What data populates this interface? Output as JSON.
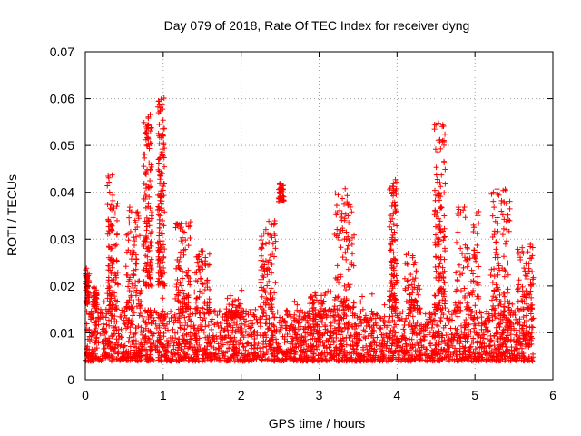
{
  "chart_data": {
    "type": "scatter",
    "title": "Day 079 of 2018, Rate Of TEC Index for receiver dyng",
    "xlabel": "GPS time / hours",
    "ylabel": "ROTI / TECUs",
    "xlim": [
      0,
      6
    ],
    "ylim": [
      0,
      0.07
    ],
    "xticks": [
      "0",
      "1",
      "2",
      "3",
      "4",
      "5",
      "6"
    ],
    "yticks": [
      "0",
      "0.01",
      "0.02",
      "0.03",
      "0.04",
      "0.05",
      "0.06",
      "0.07"
    ],
    "grid": true,
    "marker": "+",
    "series": [
      {
        "name": "ROTI",
        "color": "#ff0000",
        "x_range": [
          0,
          5.75
        ],
        "baseline_band": [
          0.004,
          0.015
        ],
        "bursts": [
          {
            "x": [
              0.0,
              0.05
            ],
            "y": [
              0.016,
              0.024
            ]
          },
          {
            "x": [
              0.1,
              0.15
            ],
            "y": [
              0.015,
              0.02
            ]
          },
          {
            "x": [
              0.28,
              0.42
            ],
            "y": [
              0.015,
              0.044
            ]
          },
          {
            "x": [
              0.52,
              0.72
            ],
            "y": [
              0.015,
              0.037
            ]
          },
          {
            "x": [
              0.75,
              0.85
            ],
            "y": [
              0.02,
              0.057
            ]
          },
          {
            "x": [
              0.93,
              1.02
            ],
            "y": [
              0.02,
              0.062
            ]
          },
          {
            "x": [
              1.15,
              1.35
            ],
            "y": [
              0.015,
              0.034
            ]
          },
          {
            "x": [
              1.4,
              1.6
            ],
            "y": [
              0.015,
              0.028
            ]
          },
          {
            "x": [
              1.8,
              2.0
            ],
            "y": [
              0.013,
              0.018
            ]
          },
          {
            "x": [
              2.25,
              2.45
            ],
            "y": [
              0.015,
              0.035
            ]
          },
          {
            "x": [
              2.48,
              2.55
            ],
            "y": [
              0.038,
              0.042
            ]
          },
          {
            "x": [
              2.85,
              3.1
            ],
            "y": [
              0.013,
              0.019
            ]
          },
          {
            "x": [
              3.2,
              3.45
            ],
            "y": [
              0.015,
              0.041
            ]
          },
          {
            "x": [
              3.9,
              4.0
            ],
            "y": [
              0.015,
              0.043
            ]
          },
          {
            "x": [
              4.1,
              4.3
            ],
            "y": [
              0.015,
              0.027
            ]
          },
          {
            "x": [
              4.48,
              4.62
            ],
            "y": [
              0.015,
              0.055
            ]
          },
          {
            "x": [
              4.75,
              5.05
            ],
            "y": [
              0.015,
              0.037
            ]
          },
          {
            "x": [
              5.2,
              5.45
            ],
            "y": [
              0.015,
              0.041
            ]
          },
          {
            "x": [
              5.55,
              5.75
            ],
            "y": [
              0.015,
              0.03
            ]
          }
        ]
      }
    ]
  }
}
